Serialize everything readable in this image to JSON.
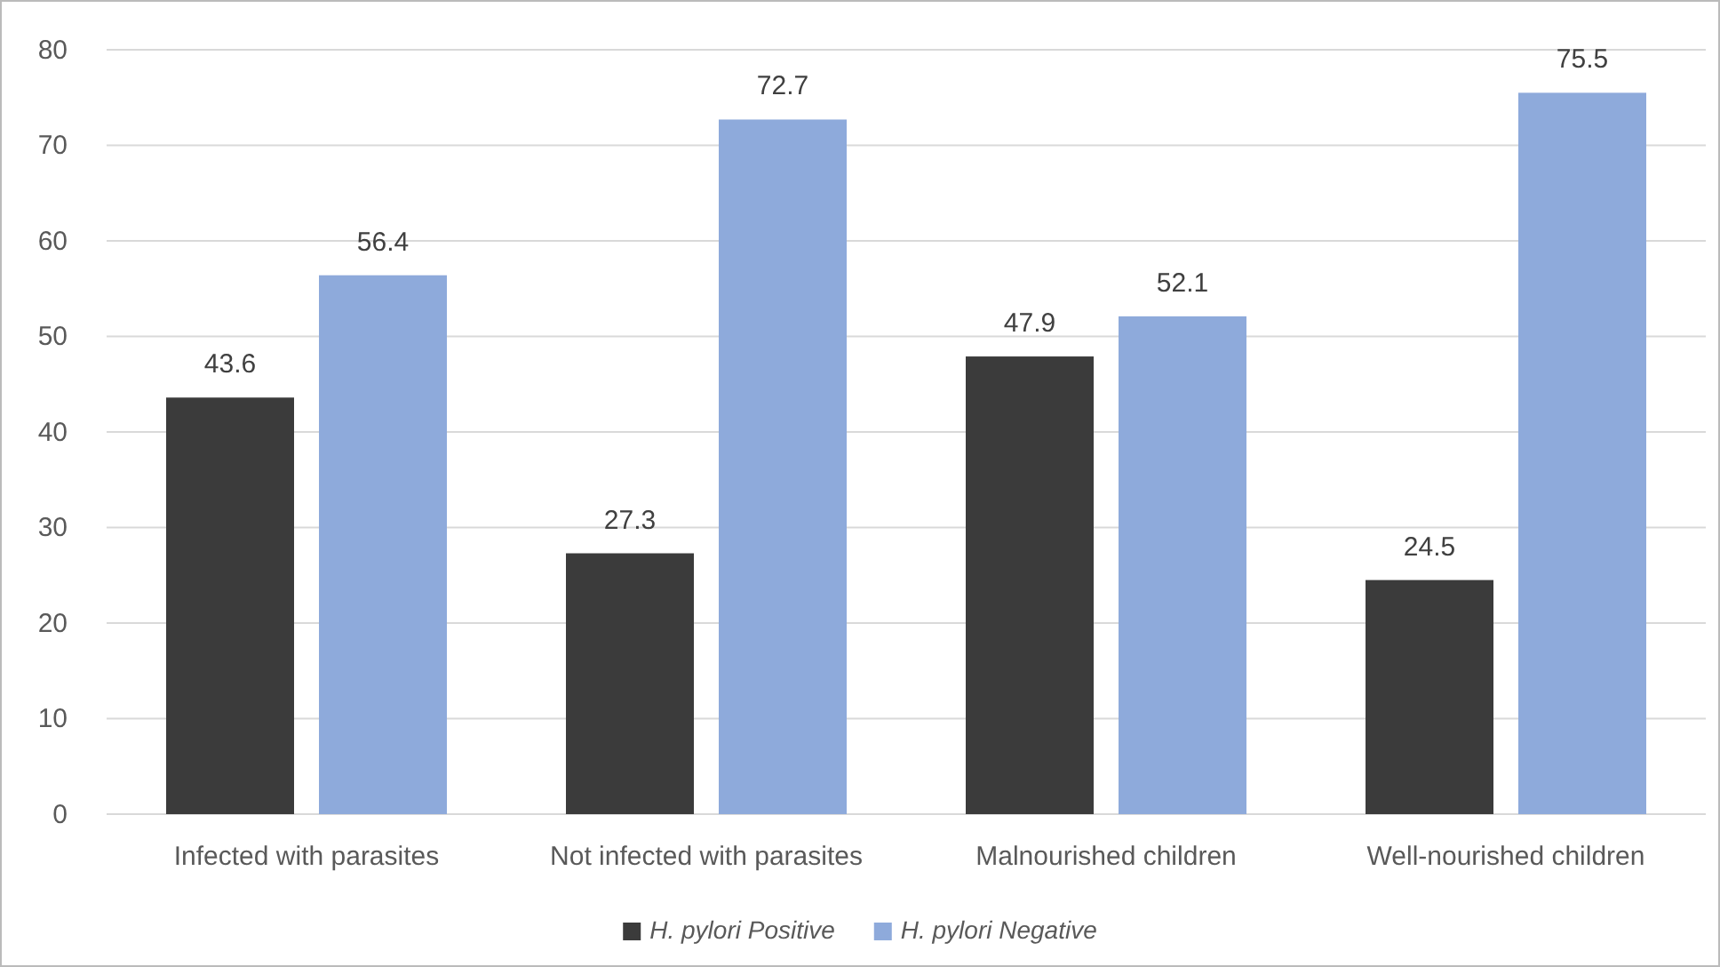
{
  "chart_data": {
    "type": "bar",
    "categories": [
      "Infected with parasites",
      "Not infected with parasites",
      "Malnourished children",
      "Well-nourished children"
    ],
    "series": [
      {
        "name": "H. pylori Positive",
        "color": "#3b3b3b",
        "values": [
          43.6,
          27.3,
          47.9,
          24.5
        ]
      },
      {
        "name": "H. pylori Negative",
        "color": "#8eaadb",
        "values": [
          56.4,
          72.7,
          52.1,
          75.5
        ]
      }
    ],
    "ylim": [
      0,
      80
    ],
    "yticks": [
      0,
      10,
      20,
      30,
      40,
      50,
      60,
      70,
      80
    ],
    "grid": "y",
    "legend": "bottom",
    "data_labels": true
  }
}
